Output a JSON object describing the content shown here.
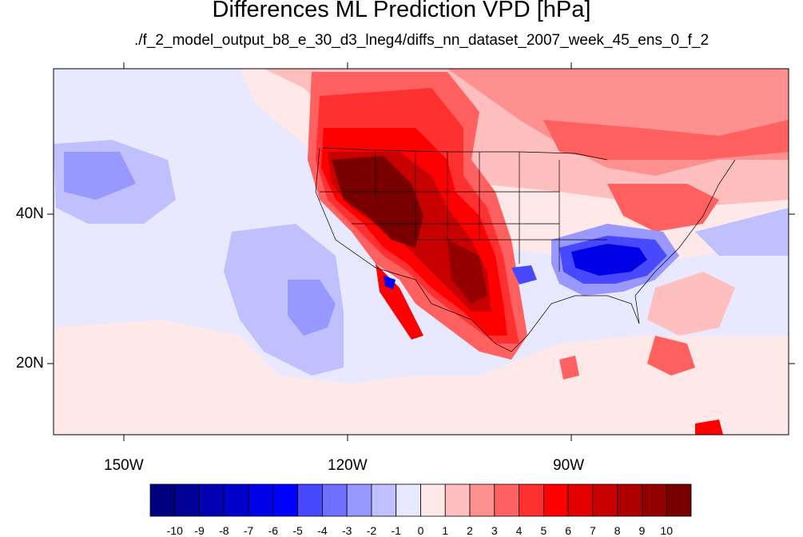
{
  "title": "Differences ML Prediction VPD [hPa]",
  "subtitle": "./f_2_model_output_b8_e_30_d3_lneg4/diffs_nn_dataset_2007_week_45_ens_0_f_2",
  "lon_labels": [
    "150W",
    "120W",
    "90W"
  ],
  "lat_labels": [
    "40N",
    "20N"
  ],
  "colorbar": {
    "labels": [
      "-10",
      "-9",
      "-8",
      "-7",
      "-6",
      "-5",
      "-4",
      "-3",
      "-2",
      "-1",
      "0",
      "1",
      "2",
      "3",
      "4",
      "5",
      "6",
      "7",
      "8",
      "9",
      "10"
    ],
    "colors": [
      "#00007f",
      "#000098",
      "#0000b2",
      "#0000cc",
      "#0000e6",
      "#0000ff",
      "#4848ff",
      "#7070ff",
      "#9898ff",
      "#c0c0ff",
      "#e8e8ff",
      "#ffe8e8",
      "#ffbfbf",
      "#ff9090",
      "#ff6060",
      "#ff3030",
      "#ff0000",
      "#e20000",
      "#c80000",
      "#ae0000",
      "#940000",
      "#7a0000"
    ]
  }
}
